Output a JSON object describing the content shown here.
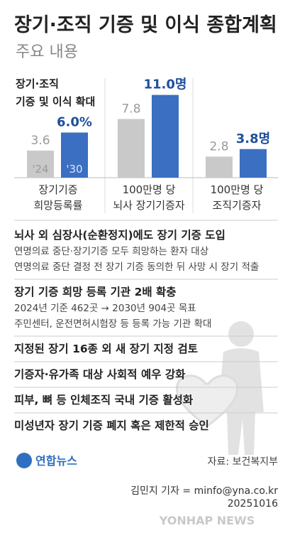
{
  "header": {
    "title": "장기·조직 기증 및 이식 종합계획",
    "subtitle": "주요 내용"
  },
  "chart_data": {
    "type": "bar",
    "title": "장기·조직\n기증 및 이식 확대",
    "categories": [
      "장기기증\n희망등록률",
      "100만명 당\n뇌사 장기기증자",
      "100만명 당\n조직기증자"
    ],
    "series": [
      {
        "name": "'24",
        "color": "#c9c9c9",
        "values": [
          3.6,
          7.8,
          2.8
        ]
      },
      {
        "name": "'30",
        "color": "#3b6fc2",
        "values": [
          6.0,
          11.0,
          3.8
        ],
        "value_labels": [
          "6.0%",
          "11.0명",
          "3.8명"
        ]
      }
    ],
    "ylim": [
      0,
      12
    ]
  },
  "items": [
    {
      "heading": "뇌사 외 심장사(순환정지)에도 장기 기증 도입",
      "lines": [
        "연명의료 중단·장기기증 모두 희망하는 환자 대상",
        "연명의료 중단 결정 전 장기 기증 동의한 뒤 사망 시 장기 적출"
      ]
    },
    {
      "heading": "장기 기증 희망 등록 기관 2배 확충",
      "lines": [
        "2024년 기준 462곳 → 2030년 904곳 목표",
        "주민센터, 운전면허시험장 등 등록 가능 기관 확대"
      ]
    },
    {
      "heading": "지정된 장기 16종 외 새 장기 지정 검토",
      "lines": []
    },
    {
      "heading": "기증자·유가족 대상 사회적 예우 강화",
      "lines": []
    },
    {
      "heading": "피부, 뼈 등 인체조직 국내 기증 활성화",
      "lines": []
    },
    {
      "heading": "미성년자 장기 기증 폐지 혹은 제한적 승인",
      "lines": []
    }
  ],
  "footer": {
    "logo": "연합뉴스",
    "source": "자료: 보건복지부",
    "credit": "김민지 기자 = minfo@yna.co.kr",
    "date": "20251016",
    "watermark": "YONHAP NEWS"
  }
}
